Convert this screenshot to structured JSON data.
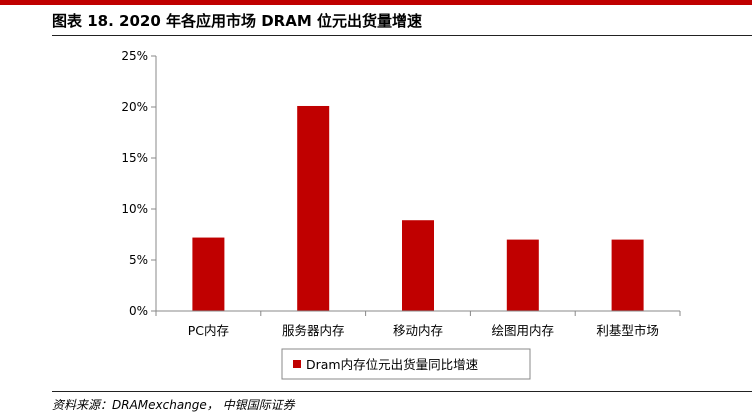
{
  "figure": {
    "title": "图表 18. 2020 年各应用市场 DRAM 位元出货量增速",
    "source": "资料来源：DRAMexchange， 中银国际证券"
  },
  "colors": {
    "accent": "#c00000",
    "bar": "#c00000"
  },
  "chart_data": {
    "type": "bar",
    "title": "",
    "xlabel": "",
    "ylabel": "",
    "categories": [
      "PC内存",
      "服务器内存",
      "移动内存",
      "绘图用内存",
      "利基型市场"
    ],
    "series": [
      {
        "name": "Dram内存位元出货量同比增速",
        "values": [
          7.2,
          20.1,
          8.9,
          7.0,
          7.0
        ]
      }
    ],
    "ylim": [
      0,
      25
    ],
    "yticks": [
      0,
      5,
      10,
      15,
      20,
      25
    ],
    "ytick_labels": [
      "0%",
      "5%",
      "10%",
      "15%",
      "20%",
      "25%"
    ],
    "grid": false,
    "legend_position": "bottom-center"
  }
}
